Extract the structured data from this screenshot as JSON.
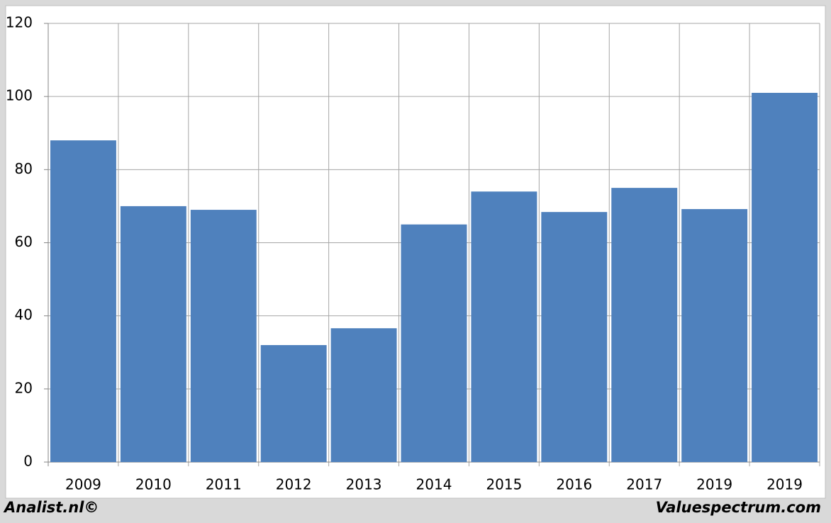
{
  "chart_data": {
    "type": "bar",
    "categories": [
      "2009",
      "2010",
      "2011",
      "2012",
      "2013",
      "2014",
      "2015",
      "2016",
      "2017",
      "2019",
      "2019"
    ],
    "values": [
      88,
      70,
      69,
      32,
      36.6,
      65,
      74,
      68.4,
      75,
      69.2,
      101
    ],
    "color": "#4f81bd",
    "ylim": [
      0,
      120
    ],
    "yticks": [
      0,
      20,
      40,
      60,
      80,
      100,
      120
    ],
    "grid": true,
    "source_left": "Analist.nl©",
    "source_right": "Valuespectrum.com"
  }
}
